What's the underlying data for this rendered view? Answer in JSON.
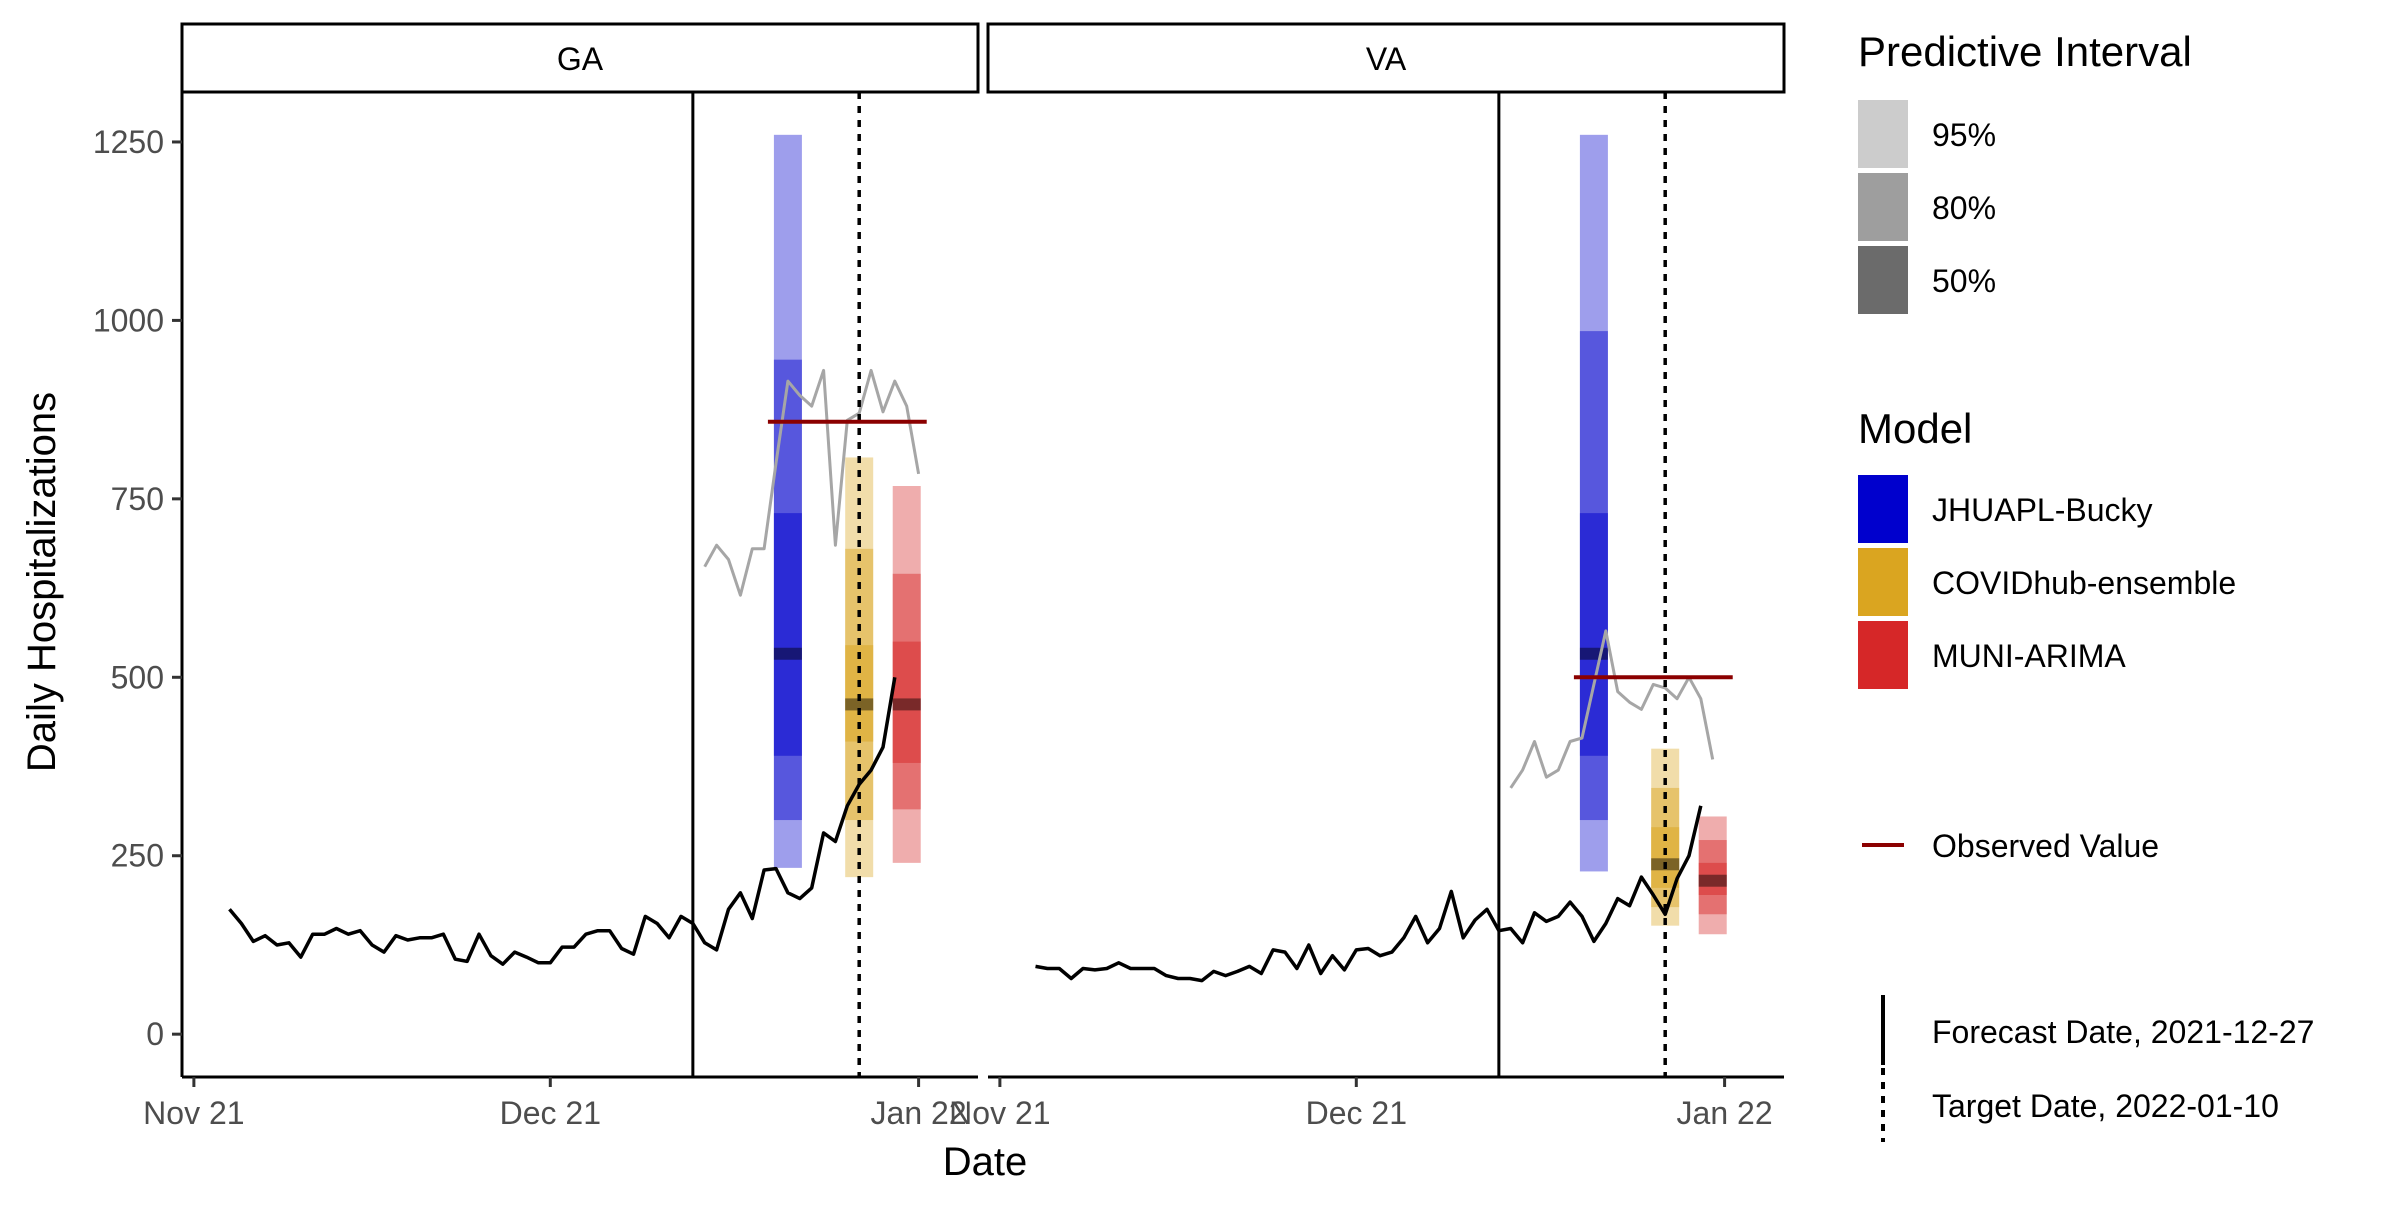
{
  "chart_data": {
    "type": "line",
    "ylabel": "Daily Hospitalizations",
    "xlabel": "Date",
    "ylim": [
      -60,
      1320
    ],
    "yticks": [
      0,
      250,
      500,
      750,
      1000,
      1250
    ],
    "yticklabels": [
      "0",
      "250",
      "500",
      "750",
      "1000",
      "1250"
    ],
    "xlim": [
      "2021-11-14",
      "2022-01-20"
    ],
    "xticks": [
      "2021-11-15",
      "2021-12-15",
      "2022-01-15"
    ],
    "xticklabels": [
      "Nov 21",
      "Dec 21",
      "Jan 22"
    ],
    "forecast_date": "2021-12-27",
    "target_date": "2022-01-10",
    "colors": {
      "JHUAPL-Bucky": "#0000cd",
      "COVIDhub-ensemble": "#daa520",
      "MUNI-ARIMA": "#d62728",
      "observed_line": "#000000",
      "future_line": "#a6a6a6",
      "observed_value": "#8b0000"
    },
    "panels": [
      {
        "strip": "GA",
        "observed": {
          "start": "2021-11-18",
          "values": [
            175,
            155,
            130,
            138,
            125,
            128,
            108,
            140,
            140,
            148,
            140,
            145,
            125,
            115,
            138,
            132,
            135,
            135,
            140,
            105,
            102,
            140,
            110,
            98,
            115,
            108,
            100,
            100,
            122,
            122,
            140,
            145,
            145,
            120,
            112,
            165,
            155,
            135,
            165,
            155,
            128,
            118,
            175,
            198,
            162,
            230,
            232,
            198,
            190,
            205,
            282,
            270,
            320,
            350,
            370,
            402,
            500
          ]
        },
        "future": {
          "start": "2021-12-28",
          "values": [
            655,
            685,
            665,
            615,
            680,
            680,
            800,
            915,
            895,
            880,
            930,
            685,
            860,
            870,
            930,
            872,
            915,
            880,
            785
          ]
        },
        "observed_value": 858,
        "models": [
          {
            "name": "JHUAPL-Bucky",
            "date": "2022-01-04",
            "median": 533,
            "q50": [
              390,
              730
            ],
            "q80": [
              300,
              945
            ],
            "q95": [
              233,
              1260
            ]
          },
          {
            "name": "COVIDhub-ensemble",
            "date": "2022-01-10",
            "median": 462,
            "q50": [
              410,
              545
            ],
            "q80": [
              300,
              680
            ],
            "q95": [
              220,
              808
            ]
          },
          {
            "name": "MUNI-ARIMA",
            "date": "2022-01-14",
            "median": 462,
            "q50": [
              380,
              550
            ],
            "q80": [
              315,
              645
            ],
            "q95": [
              240,
              768
            ]
          }
        ]
      },
      {
        "strip": "VA",
        "observed": {
          "start": "2021-11-18",
          "values": [
            95,
            92,
            92,
            78,
            92,
            90,
            92,
            100,
            92,
            92,
            92,
            82,
            78,
            78,
            75,
            88,
            82,
            88,
            95,
            85,
            118,
            115,
            92,
            125,
            85,
            110,
            90,
            118,
            120,
            110,
            115,
            135,
            165,
            128,
            148,
            200,
            135,
            160,
            175,
            145,
            148,
            128,
            170,
            158,
            165,
            185,
            165,
            130,
            155,
            190,
            180,
            220,
            195,
            168,
            218,
            250,
            320
          ]
        },
        "future": {
          "start": "2021-12-28",
          "values": [
            345,
            370,
            410,
            360,
            370,
            410,
            415,
            490,
            565,
            480,
            465,
            455,
            490,
            485,
            470,
            500,
            470,
            385
          ]
        },
        "observed_value": 500,
        "models": [
          {
            "name": "JHUAPL-Bucky",
            "date": "2022-01-04",
            "median": 533,
            "q50": [
              390,
              730
            ],
            "q80": [
              300,
              985
            ],
            "q95": [
              228,
              1260
            ]
          },
          {
            "name": "COVIDhub-ensemble",
            "date": "2022-01-10",
            "median": 238,
            "q50": [
              205,
              290
            ],
            "q80": [
              178,
              345
            ],
            "q95": [
              152,
              400
            ]
          },
          {
            "name": "MUNI-ARIMA",
            "date": "2022-01-14",
            "median": 215,
            "q50": [
              195,
              240
            ],
            "q80": [
              168,
              272
            ],
            "q95": [
              140,
              305
            ]
          }
        ]
      }
    ],
    "legend": {
      "interval_title": "Predictive Interval",
      "intervals": [
        {
          "label": "95%",
          "color": "#cccccc"
        },
        {
          "label": "80%",
          "color": "#9e9e9e"
        },
        {
          "label": "50%",
          "color": "#6b6b6b"
        }
      ],
      "model_title": "Model",
      "models": [
        {
          "label": "JHUAPL-Bucky",
          "color": "#0000cd"
        },
        {
          "label": "COVIDhub-ensemble",
          "color": "#daa520"
        },
        {
          "label": "MUNI-ARIMA",
          "color": "#d62728"
        }
      ],
      "observed_label": "Observed Value",
      "forecast_label": "Forecast Date, 2021-12-27",
      "target_label": "Target Date, 2022-01-10"
    }
  }
}
